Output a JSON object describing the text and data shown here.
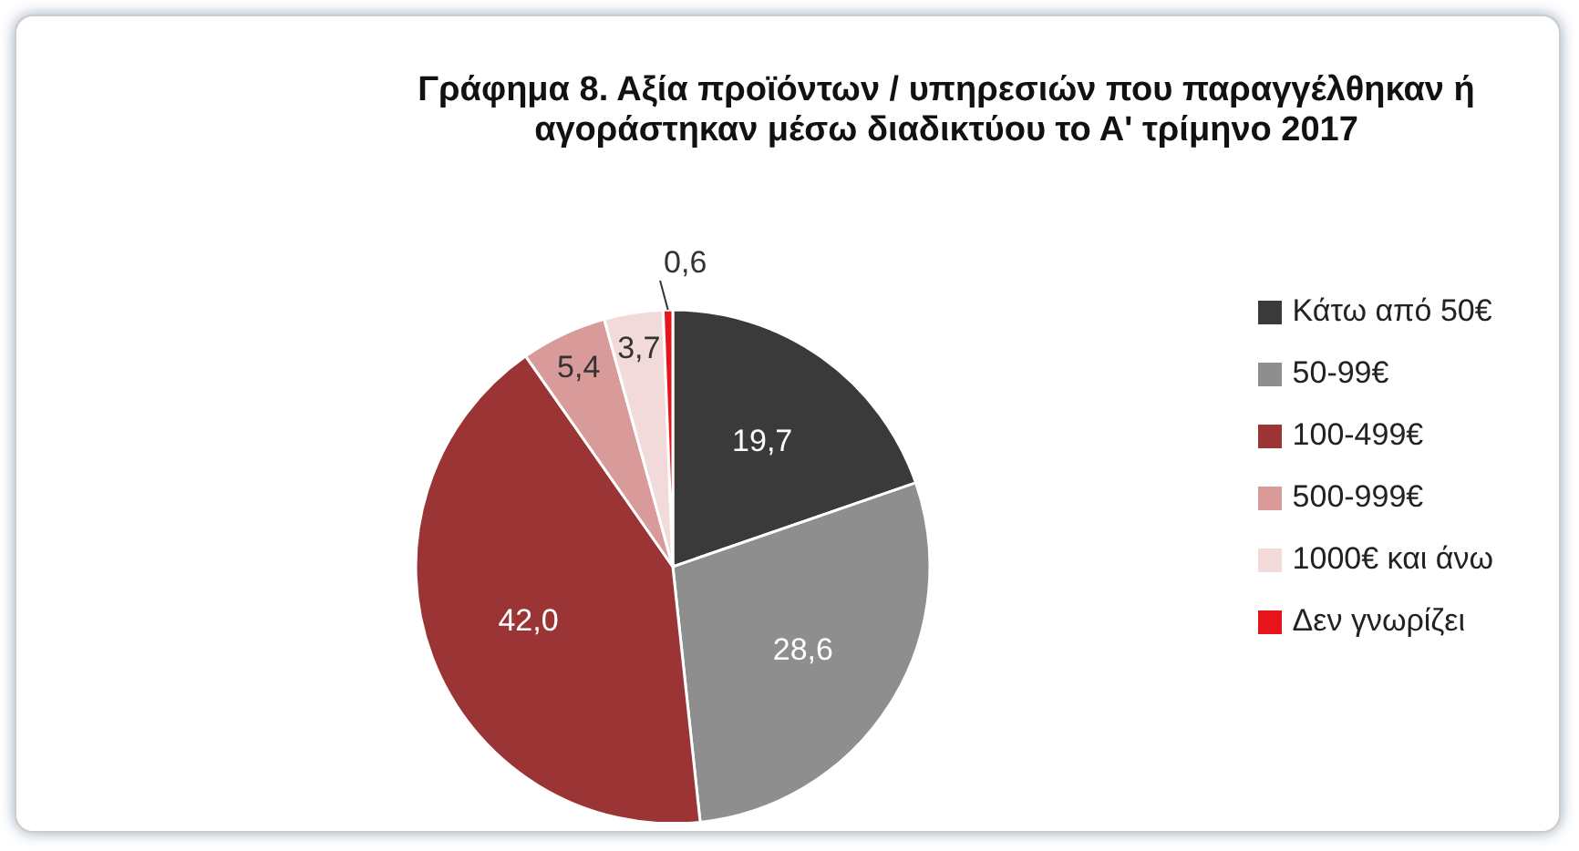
{
  "chart_data": {
    "type": "pie",
    "title": "Γράφημα 8. Αξία προϊόντων / υπηρεσιών που παραγγέλθηκαν ή αγοράστηκαν μέσω διαδικτύου το Α' τρίμηνο 2017",
    "categories": [
      "Κάτω από 50€",
      "50-99€",
      "100-499€",
      "500-999€",
      "1000€ και άνω",
      "Δεν γνωρίζει"
    ],
    "values": [
      19.7,
      28.6,
      42.0,
      5.4,
      3.7,
      0.6
    ],
    "value_labels": [
      "19,7",
      "28,6",
      "42,0",
      "5,4",
      "3,7",
      "0,6"
    ],
    "colors": [
      "#3a3a3a",
      "#8e8e8e",
      "#9b3535",
      "#d99a9a",
      "#f2dada",
      "#e8141b"
    ],
    "legend": "right"
  }
}
